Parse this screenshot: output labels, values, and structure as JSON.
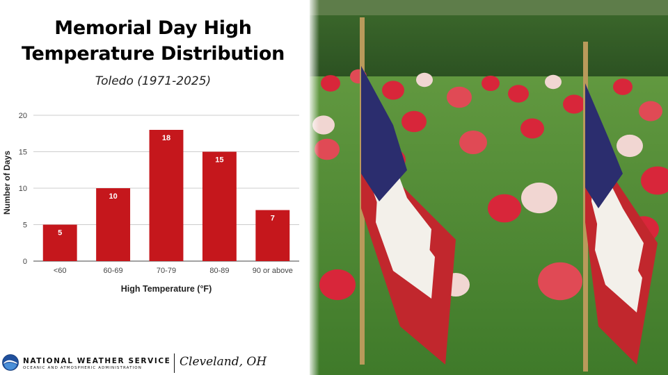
{
  "title_lines": [
    "Memorial Day High",
    "Temperature Distribution"
  ],
  "subtitle": "Toledo (1971-2025)",
  "chart_data": {
    "type": "bar",
    "categories": [
      "<60",
      "60-69",
      "70-79",
      "80-89",
      "90 or above"
    ],
    "values": [
      5,
      10,
      18,
      15,
      7
    ],
    "xlabel": "High Temperature (°F)",
    "ylabel": "Number of Days",
    "ylim": [
      0,
      20
    ],
    "yticks": [
      0,
      5,
      10,
      15,
      20
    ],
    "grid": true,
    "data_labels": true,
    "bar_color": "#c5171c"
  },
  "footer": {
    "agency": "NATIONAL WEATHER SERVICE",
    "agency_sub": "OCEANIC AND ATMOSPHERIC ADMINISTRATION",
    "office": "Cleveland, OH"
  },
  "colors": {
    "grass": "#4f8a35",
    "hedge": "#2f5a25",
    "flag_red": "#c1272d",
    "flag_blue": "#2b2d6e"
  }
}
